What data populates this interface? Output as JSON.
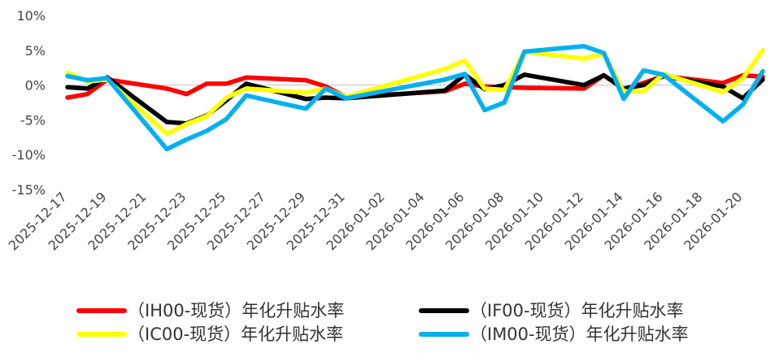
{
  "chart_data": {
    "type": "line",
    "x": [
      "2025-12-17",
      "2025-12-18",
      "2025-12-19",
      "2025-12-22",
      "2025-12-23",
      "2025-12-24",
      "2025-12-25",
      "2025-12-26",
      "2025-12-29",
      "2025-12-30",
      "2025-12-31",
      "2026-01-05",
      "2026-01-06",
      "2026-01-07",
      "2026-01-08",
      "2026-01-09",
      "2026-01-12",
      "2026-01-13",
      "2026-01-14",
      "2026-01-15",
      "2026-01-16",
      "2026-01-19",
      "2026-01-20",
      "2026-01-21"
    ],
    "x_tick_labels": [
      "2025-12-17",
      "2025-12-19",
      "2025-12-21",
      "2025-12-23",
      "2025-12-25",
      "2025-12-27",
      "2025-12-29",
      "2025-12-31",
      "2026-01-02",
      "2026-01-04",
      "2026-01-06",
      "2026-01-08",
      "2026-01-10",
      "2026-01-12",
      "2026-01-14",
      "2026-01-16",
      "2026-01-18",
      "2026-01-20"
    ],
    "x_range": [
      "2025-12-17",
      "2026-01-21"
    ],
    "y_ticks": [
      10,
      5,
      0,
      -5,
      -10,
      -15
    ],
    "y_tick_labels": [
      "10%",
      "5%",
      "0%",
      "-5%",
      "-10%",
      "-15%"
    ],
    "ylim": [
      -15,
      10
    ],
    "grid": false,
    "legend_position": "bottom",
    "series": [
      {
        "name": "（IH00-现货）年化升贴水率",
        "color": "#ff0000",
        "values": [
          -1.8,
          -1.3,
          0.8,
          -0.5,
          -1.3,
          0.2,
          0.2,
          1.1,
          0.7,
          -0.2,
          -1.7,
          -0.9,
          0.2,
          -0.2,
          -0.3,
          -0.4,
          -0.5,
          1.4,
          -0.6,
          0.3,
          1.3,
          0.3,
          1.4,
          1.2
        ]
      },
      {
        "name": "（IF00-现货）年化升贴水率",
        "color": "#000000",
        "values": [
          -0.3,
          -0.5,
          1.1,
          -5.3,
          -5.5,
          -4.4,
          -2.2,
          0.2,
          -2.0,
          -1.8,
          -1.9,
          -0.8,
          1.5,
          -0.6,
          0.0,
          1.5,
          0.0,
          1.4,
          -0.5,
          0.0,
          1.3,
          -0.2,
          -1.9,
          0.8
        ]
      },
      {
        "name": "（IC00-现货）年化升贴水率",
        "color": "#ffff00",
        "values": [
          1.8,
          0.5,
          0.8,
          -7.0,
          -5.6,
          -4.5,
          -1.8,
          -0.5,
          -1.1,
          -0.5,
          -1.7,
          2.3,
          3.5,
          -0.5,
          -0.7,
          4.8,
          3.8,
          4.5,
          -0.9,
          -0.9,
          1.6,
          -1.0,
          1.0,
          5.0
        ]
      },
      {
        "name": "（IM00-现货）年化升贴水率",
        "color": "#00b0f0",
        "values": [
          1.3,
          0.7,
          1.0,
          -9.2,
          -7.8,
          -6.6,
          -4.9,
          -1.5,
          -3.4,
          -0.5,
          -1.9,
          0.8,
          1.6,
          -3.6,
          -2.5,
          4.8,
          5.6,
          4.6,
          -2.0,
          2.1,
          1.5,
          -5.2,
          -2.8,
          2.0
        ]
      }
    ]
  }
}
